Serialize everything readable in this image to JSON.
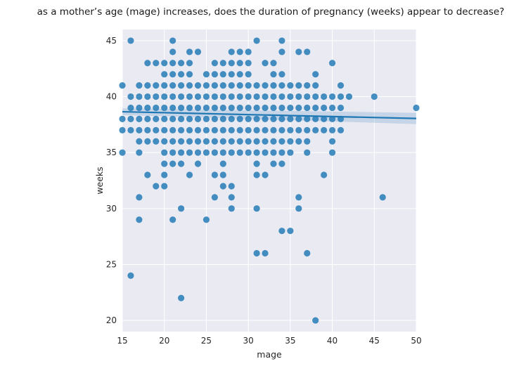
{
  "chart_data": {
    "type": "scatter",
    "title": "as a mother’s age (mage) increases, does the duration of pregnancy (weeks) appear to decrease?",
    "xlabel": "mage",
    "ylabel": "weeks",
    "xlim": [
      15,
      50
    ],
    "ylim": [
      19,
      46
    ],
    "xticks": [
      15,
      20,
      25,
      30,
      35,
      40,
      45,
      50
    ],
    "yticks": [
      20,
      25,
      30,
      35,
      40,
      45
    ],
    "grid": true,
    "colors": {
      "background": "#eaeaf2",
      "grid": "#ffffff",
      "points": "#1f77b4",
      "band": "#1f77b4"
    },
    "regression": {
      "x": [
        15,
        50
      ],
      "y": [
        38.65,
        38.05
      ],
      "ci_lower": [
        38.35,
        37.55
      ],
      "ci_upper": [
        38.95,
        38.55
      ]
    },
    "points": {
      "ranges": [
        [
          15,
          37,
          38
        ],
        [
          16,
          37,
          40
        ],
        [
          17,
          35,
          41
        ],
        [
          18,
          36,
          41
        ],
        [
          19,
          36,
          41
        ],
        [
          20,
          34,
          43
        ],
        [
          21,
          34,
          43
        ],
        [
          22,
          34,
          43
        ],
        [
          23,
          35,
          43
        ],
        [
          24,
          35,
          41
        ],
        [
          25,
          35,
          41
        ],
        [
          26,
          35,
          42
        ],
        [
          27,
          34,
          43
        ],
        [
          28,
          35,
          44
        ],
        [
          29,
          35,
          43
        ],
        [
          30,
          35,
          43
        ],
        [
          31,
          35,
          41
        ],
        [
          32,
          35,
          41
        ],
        [
          33,
          35,
          42
        ],
        [
          34,
          34,
          42
        ],
        [
          35,
          35,
          41
        ],
        [
          36,
          36,
          41
        ],
        [
          37,
          35,
          41
        ],
        [
          38,
          37,
          41
        ],
        [
          39,
          37,
          40
        ],
        [
          40,
          35,
          40
        ],
        [
          41,
          37,
          41
        ]
      ],
      "extra": [
        [
          15,
          41
        ],
        [
          15,
          35
        ],
        [
          16,
          45
        ],
        [
          16,
          24
        ],
        [
          17,
          31
        ],
        [
          17,
          29
        ],
        [
          18,
          43
        ],
        [
          18,
          33
        ],
        [
          19,
          43
        ],
        [
          19,
          32
        ],
        [
          20,
          33
        ],
        [
          20,
          32
        ],
        [
          21,
          45
        ],
        [
          21,
          44
        ],
        [
          21,
          29
        ],
        [
          22,
          30
        ],
        [
          22,
          22
        ],
        [
          23,
          44
        ],
        [
          23,
          33
        ],
        [
          24,
          44
        ],
        [
          24,
          34
        ],
        [
          25,
          42
        ],
        [
          25,
          29
        ],
        [
          26,
          43
        ],
        [
          26,
          33
        ],
        [
          26,
          31
        ],
        [
          27,
          33
        ],
        [
          27,
          32
        ],
        [
          28,
          32
        ],
        [
          28,
          31
        ],
        [
          28,
          30
        ],
        [
          29,
          44
        ],
        [
          30,
          44
        ],
        [
          31,
          45
        ],
        [
          31,
          34
        ],
        [
          31,
          33
        ],
        [
          31,
          30
        ],
        [
          31,
          26
        ],
        [
          32,
          43
        ],
        [
          32,
          33
        ],
        [
          32,
          26
        ],
        [
          33,
          43
        ],
        [
          33,
          34
        ],
        [
          34,
          45
        ],
        [
          34,
          44
        ],
        [
          34,
          28
        ],
        [
          35,
          28
        ],
        [
          36,
          44
        ],
        [
          36,
          31
        ],
        [
          36,
          30
        ],
        [
          37,
          44
        ],
        [
          37,
          26
        ],
        [
          38,
          42
        ],
        [
          38,
          20
        ],
        [
          39,
          33
        ],
        [
          40,
          43
        ],
        [
          42,
          40
        ],
        [
          45,
          40
        ],
        [
          46,
          31
        ],
        [
          50,
          39
        ]
      ]
    }
  }
}
